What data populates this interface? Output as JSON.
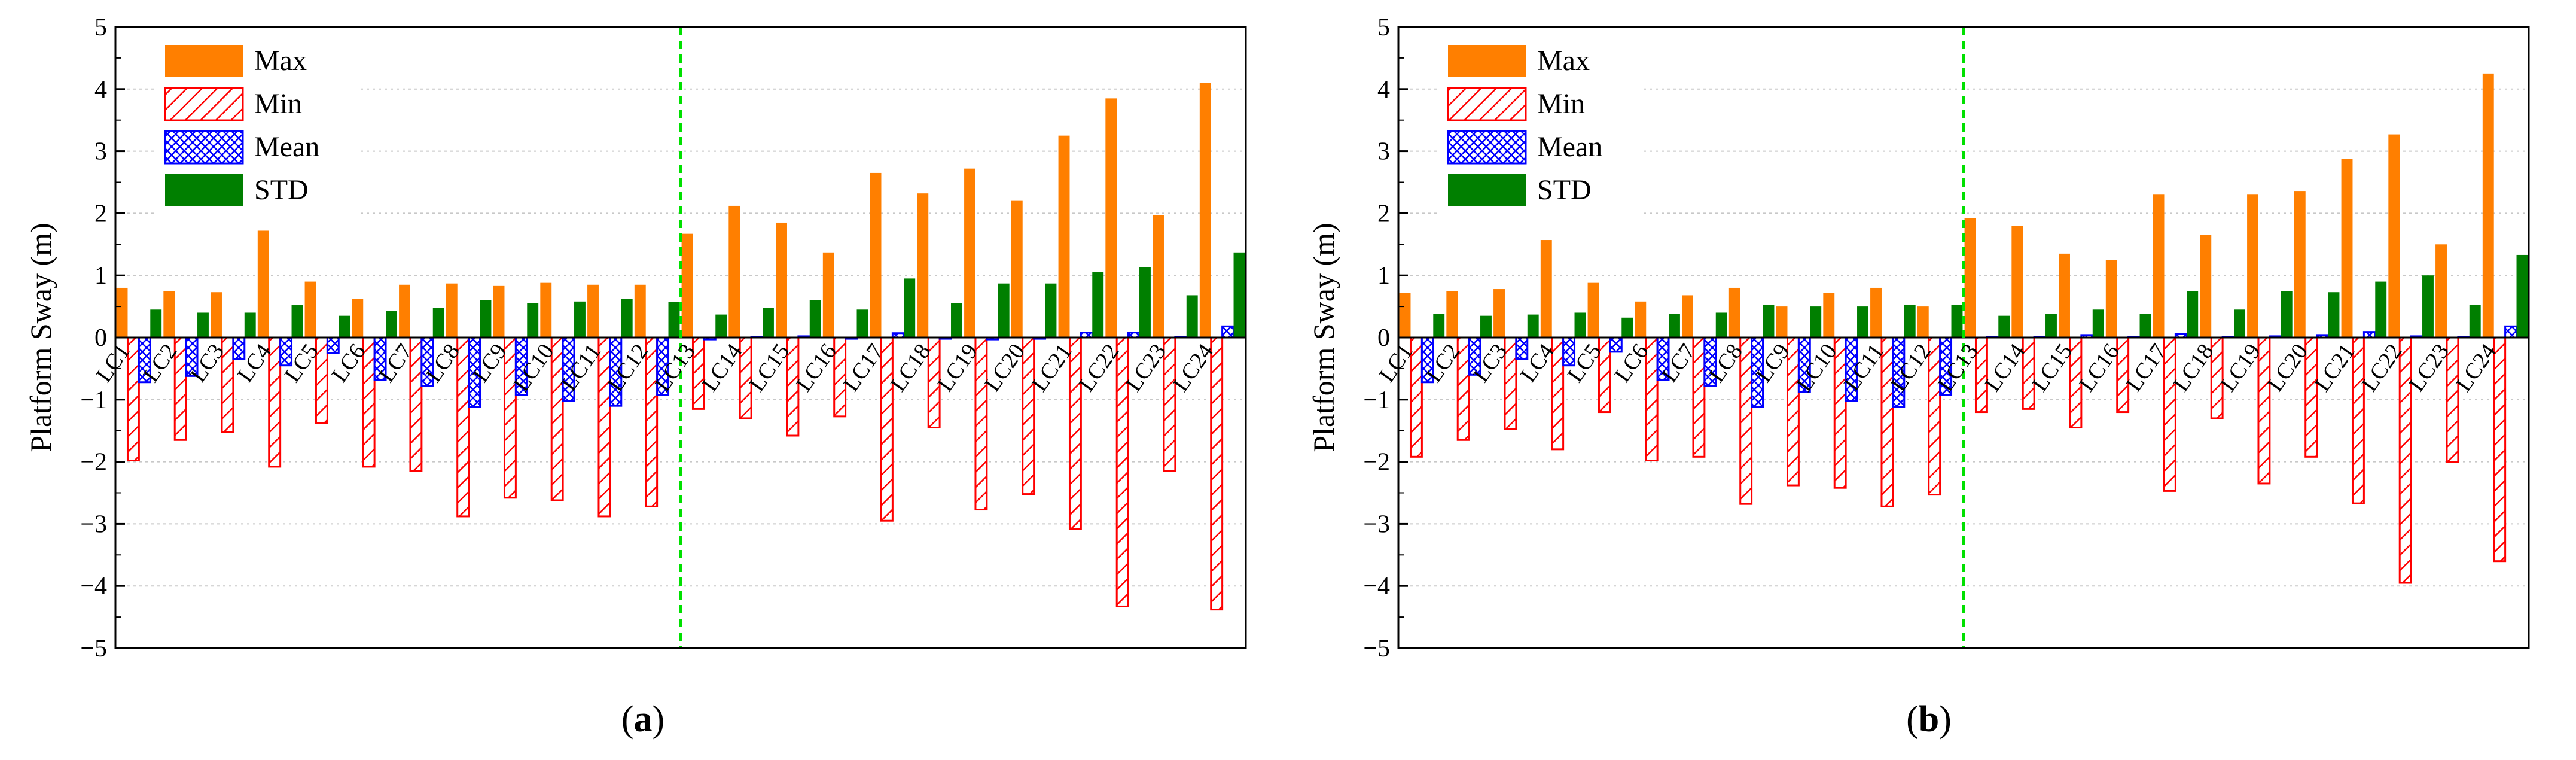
{
  "legend": {
    "max": "Max",
    "min": "Min",
    "mean": "Mean",
    "std": "STD"
  },
  "colors": {
    "max": "#ff7f00",
    "min": "#ff0000",
    "mean": "#0000ff",
    "std": "#007f00",
    "divider": "#00e000"
  },
  "chart_data": [
    {
      "type": "bar",
      "panel": "a",
      "ylabel": "Platform Sway (m)",
      "ylim": [
        -5,
        5
      ],
      "yticks": [
        5,
        4,
        3,
        2,
        1,
        0,
        -1,
        -2,
        -3,
        -4,
        -5
      ],
      "ytick_labels": [
        "5",
        "4",
        "3",
        "2",
        "1",
        "0",
        "−1",
        "−2",
        "−3",
        "−4",
        "−5"
      ],
      "grid": true,
      "legend_position": "top-left",
      "divider_after_category": 12,
      "categories": [
        "LC1",
        "LC2",
        "LC3",
        "LC4",
        "LC5",
        "LC6",
        "LC7",
        "LC8",
        "LC9",
        "LC10",
        "LC11",
        "LC12",
        "LC13",
        "LC14",
        "LC15",
        "LC16",
        "LC17",
        "LC18",
        "LC19",
        "LC20",
        "LC21",
        "LC22",
        "LC23",
        "LC24"
      ],
      "series": [
        {
          "name": "Max",
          "values": [
            0.8,
            0.75,
            0.73,
            1.72,
            0.9,
            0.62,
            0.85,
            0.87,
            0.83,
            0.88,
            0.85,
            0.85,
            1.67,
            2.12,
            1.85,
            1.37,
            2.65,
            2.32,
            2.72,
            2.2,
            3.25,
            3.85,
            1.97,
            4.1
          ]
        },
        {
          "name": "Min",
          "values": [
            -1.98,
            -1.65,
            -1.52,
            -2.08,
            -1.38,
            -2.08,
            -2.15,
            -2.88,
            -2.58,
            -2.62,
            -2.88,
            -2.72,
            -1.15,
            -1.3,
            -1.58,
            -1.27,
            -2.95,
            -1.45,
            -2.77,
            -2.52,
            -3.08,
            -4.33,
            -2.15,
            -4.38
          ]
        },
        {
          "name": "Mean",
          "values": [
            -0.72,
            -0.62,
            -0.35,
            -0.45,
            -0.25,
            -0.68,
            -0.78,
            -1.12,
            -0.92,
            -1.02,
            -1.1,
            -0.92,
            -0.03,
            0.01,
            0.02,
            -0.02,
            0.07,
            -0.02,
            -0.03,
            -0.02,
            0.08,
            0.08,
            0.01,
            0.18
          ]
        },
        {
          "name": "STD",
          "values": [
            0.45,
            0.4,
            0.4,
            0.52,
            0.35,
            0.43,
            0.48,
            0.6,
            0.55,
            0.58,
            0.62,
            0.57,
            0.37,
            0.48,
            0.6,
            0.45,
            0.95,
            0.55,
            0.87,
            0.87,
            1.05,
            1.13,
            0.68,
            1.37
          ]
        }
      ]
    },
    {
      "type": "bar",
      "panel": "b",
      "ylabel": "Platform Sway (m)",
      "ylim": [
        -5,
        5
      ],
      "yticks": [
        5,
        4,
        3,
        2,
        1,
        0,
        -1,
        -2,
        -3,
        -4,
        -5
      ],
      "ytick_labels": [
        "5",
        "4",
        "3",
        "2",
        "1",
        "0",
        "−1",
        "−2",
        "−3",
        "−4",
        "−5"
      ],
      "grid": true,
      "legend_position": "top-left",
      "divider_after_category": 12,
      "categories": [
        "LC1",
        "LC2",
        "LC3",
        "LC4",
        "LC5",
        "LC6",
        "LC7",
        "LC8",
        "LC9",
        "LC10",
        "LC11",
        "LC12",
        "LC13",
        "LC14",
        "LC15",
        "LC16",
        "LC17",
        "LC18",
        "LC19",
        "LC20",
        "LC21",
        "LC22",
        "LC23",
        "LC24"
      ],
      "series": [
        {
          "name": "Max",
          "values": [
            0.72,
            0.75,
            0.78,
            1.57,
            0.88,
            0.58,
            0.68,
            0.8,
            0.5,
            0.72,
            0.8,
            0.5,
            1.92,
            1.8,
            1.35,
            1.25,
            2.3,
            1.65,
            2.3,
            2.35,
            2.88,
            3.27,
            1.5,
            4.25
          ]
        },
        {
          "name": "Min",
          "values": [
            -1.92,
            -1.65,
            -1.47,
            -1.8,
            -1.2,
            -1.98,
            -1.92,
            -2.68,
            -2.38,
            -2.42,
            -2.72,
            -2.53,
            -1.2,
            -1.15,
            -1.45,
            -1.2,
            -2.47,
            -1.3,
            -2.35,
            -1.92,
            -2.67,
            -3.95,
            -2.0,
            -3.6
          ]
        },
        {
          "name": "Mean",
          "values": [
            -0.72,
            -0.6,
            -0.35,
            -0.45,
            -0.23,
            -0.68,
            -0.78,
            -1.12,
            -0.88,
            -1.02,
            -1.12,
            -0.92,
            0.01,
            0.01,
            0.04,
            0.01,
            0.06,
            0.01,
            0.02,
            0.04,
            0.09,
            0.02,
            0.01,
            0.18
          ]
        },
        {
          "name": "STD",
          "values": [
            0.38,
            0.35,
            0.37,
            0.4,
            0.32,
            0.38,
            0.4,
            0.53,
            0.5,
            0.5,
            0.53,
            0.53,
            0.35,
            0.38,
            0.45,
            0.38,
            0.75,
            0.45,
            0.75,
            0.73,
            0.9,
            1.0,
            0.53,
            1.33
          ]
        }
      ]
    }
  ],
  "captions": [
    {
      "open": "(",
      "letter": "a",
      "close": ")"
    },
    {
      "open": "(",
      "letter": "b",
      "close": ")"
    }
  ]
}
